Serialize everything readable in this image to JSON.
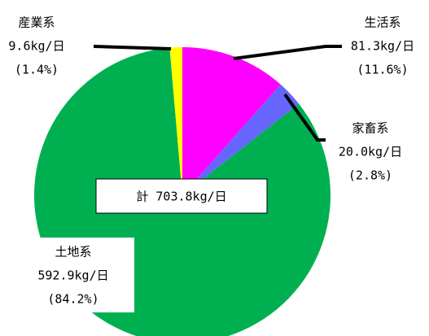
{
  "chart_data": {
    "type": "pie",
    "categories": [
      "生活系",
      "家畜系",
      "土地系",
      "産業系"
    ],
    "values": [
      81.3,
      20.0,
      592.9,
      9.6
    ],
    "value_labels": [
      "81.3kg/日",
      "20.0kg/日",
      "592.9kg/日",
      "9.6kg/日"
    ],
    "percents": [
      11.6,
      2.8,
      84.2,
      1.4
    ],
    "percent_labels": [
      "(11.6%)",
      "(2.8%)",
      "(84.2%)",
      "(1.4%)"
    ],
    "colors": [
      "#ff00ff",
      "#6666ff",
      "#00b050",
      "#ffff00"
    ],
    "total_label": "計 703.8kg/日"
  }
}
